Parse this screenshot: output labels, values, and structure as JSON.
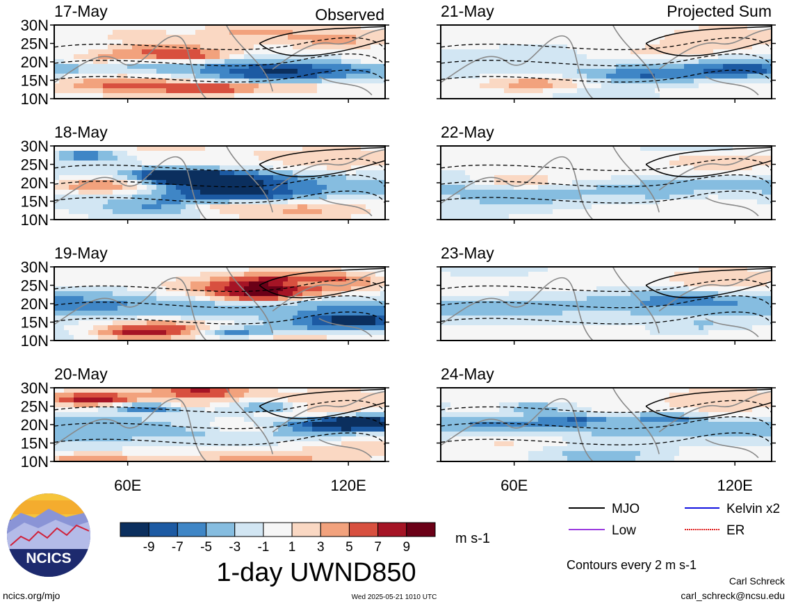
{
  "panels": {
    "left_header": "Observed",
    "right_header": "Projected Sum",
    "left": [
      {
        "date": "17-May"
      },
      {
        "date": "18-May"
      },
      {
        "date": "19-May"
      },
      {
        "date": "20-May"
      }
    ],
    "right": [
      {
        "date": "21-May"
      },
      {
        "date": "22-May"
      },
      {
        "date": "23-May"
      },
      {
        "date": "24-May"
      }
    ]
  },
  "chart_data": {
    "type": "heatmap",
    "title": "1-day UWND850",
    "units": "m s-1",
    "y_ticks": [
      "30N",
      "25N",
      "20N",
      "15N",
      "10N"
    ],
    "x_ticks": [
      "60E",
      "120E"
    ],
    "colorbar": {
      "tick_labels": [
        "-9",
        "-7",
        "-5",
        "-3",
        "-1",
        "1",
        "3",
        "5",
        "7",
        "9"
      ],
      "colors": [
        "#0b2f5e",
        "#1c5aa3",
        "#3f86c6",
        "#86bde0",
        "#d2e6f3",
        "#f6f6f6",
        "#fad8c3",
        "#f2a27d",
        "#d8503f",
        "#a51425",
        "#6b0017"
      ]
    }
  },
  "legend": {
    "items": [
      {
        "label": "MJO",
        "color": "#000000"
      },
      {
        "label": "Kelvin x2",
        "color": "#1010e0"
      },
      {
        "label": "Low",
        "color": "#9a3ae0"
      },
      {
        "label": "ER",
        "color": "#e02020"
      }
    ],
    "contours_note": "Contours every 2 m s-1"
  },
  "footer": {
    "site": "ncics.org/mjo",
    "timestamp": "Wed 2025-05-21 1010 UTC",
    "author": "Carl Schreck",
    "email": "carl_schreck@ncsu.edu",
    "logo_text": "NCICS"
  }
}
